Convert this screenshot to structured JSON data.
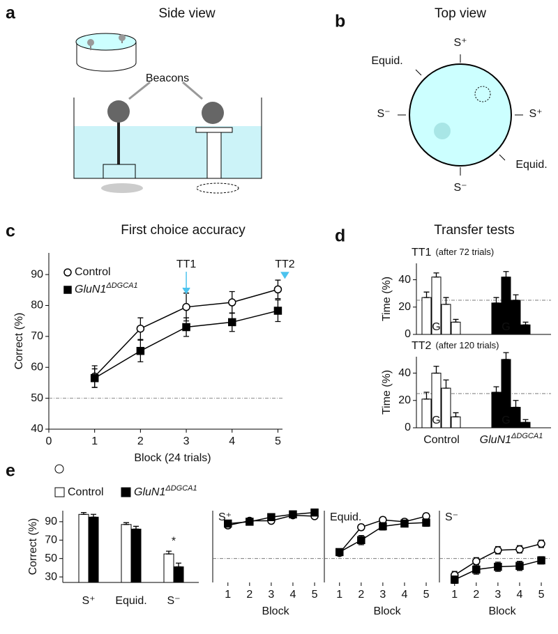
{
  "panel_a": {
    "label": "a",
    "title": "Side view",
    "beacons": "Beacons"
  },
  "panel_b": {
    "label": "b",
    "title": "Top view",
    "labels": [
      "S⁺",
      "Equid.",
      "S⁻",
      "S⁺",
      "Equid.",
      "S⁻"
    ]
  },
  "panel_d": {
    "label": "d",
    "title": "Transfer tests"
  },
  "chart_data": [
    {
      "type": "line",
      "panel_label": "c",
      "title": "First choice accuracy",
      "x_label": "Block (24 trials)",
      "y_label": "Correct (%)",
      "x": [
        1,
        2,
        3,
        4,
        5
      ],
      "xlim": [
        0,
        5.1
      ],
      "xticks": [
        0,
        1,
        2,
        3,
        4,
        5
      ],
      "ylim": [
        40,
        97
      ],
      "yticks": [
        40,
        50,
        60,
        70,
        80,
        90
      ],
      "reference_line": 50,
      "legend": true,
      "annotations": [
        "TT1",
        "TT2"
      ],
      "annotation_color": "#4cc3ee",
      "series": [
        {
          "name": "Control",
          "marker": "circle",
          "color": "#ffffff",
          "values": [
            57,
            72.5,
            79.5,
            81,
            85.2
          ],
          "errors": [
            3.5,
            3.5,
            4.5,
            3.5,
            3
          ]
        },
        {
          "name": "GluN1",
          "name_sup": "ΔDGCA1",
          "label_style": "italic",
          "marker": "square",
          "color": "#000000",
          "values": [
            56.5,
            65.3,
            73,
            74.6,
            78.3
          ],
          "errors": [
            3,
            3.5,
            3,
            3,
            3.5
          ]
        }
      ]
    },
    {
      "type": "bar",
      "label": "TT1",
      "note": "(after 72 trials)",
      "y_label": "Time (%)",
      "ylim": [
        0,
        52
      ],
      "yticks": [
        0,
        20,
        40
      ],
      "reference_line": 25,
      "series": [
        {
          "color": "#ffffff",
          "values": [
            27,
            42,
            22,
            9
          ],
          "errors": [
            4,
            3,
            5,
            2
          ],
          "bar_labels": [
            null,
            "G",
            null,
            null
          ]
        },
        {
          "color": "#000000",
          "values": [
            23,
            42,
            25,
            7
          ],
          "errors": [
            4,
            4,
            4,
            2
          ],
          "bar_labels": [
            null,
            "G",
            null,
            null
          ]
        }
      ]
    },
    {
      "type": "bar",
      "label": "TT2",
      "note": "(after 120 trials)",
      "y_label": "Time (%)",
      "ylim": [
        0,
        52
      ],
      "yticks": [
        0,
        20,
        40
      ],
      "reference_line": 25,
      "series": [
        {
          "name": "Control",
          "color": "#ffffff",
          "values": [
            21,
            40,
            29,
            8
          ],
          "errors": [
            5,
            5,
            6,
            3
          ],
          "bar_labels": [
            null,
            "G",
            null,
            null
          ]
        },
        {
          "name": "GluN1",
          "name_sup": "ΔDGCA1",
          "label_style": "italic",
          "color": "#000000",
          "values": [
            26,
            50,
            15,
            4
          ],
          "errors": [
            4,
            5,
            5,
            2
          ],
          "bar_labels": [
            null,
            "G",
            null,
            null
          ]
        }
      ]
    },
    {
      "type": "bar",
      "panel_label": "e",
      "y_label": "Correct (%)",
      "categories": [
        "S⁺",
        "Equid.",
        "S⁻"
      ],
      "ylim": [
        24,
        102
      ],
      "yticks": [
        30,
        50,
        70,
        90
      ],
      "legend": true,
      "annotations": [
        "*"
      ],
      "series": [
        {
          "name": "Control",
          "color": "#ffffff",
          "values": [
            98,
            87,
            55
          ],
          "errors": [
            2,
            2,
            3
          ]
        },
        {
          "name": "GluN1",
          "name_sup": "ΔDGCA1",
          "label_style": "italic",
          "color": "#000000",
          "values": [
            95,
            82,
            41
          ],
          "errors": [
            3,
            3,
            4
          ]
        }
      ]
    },
    {
      "type": "line",
      "title": "S⁺",
      "x_label": "Block",
      "x": [
        1,
        2,
        3,
        4,
        5
      ],
      "xlim": [
        0.3,
        5.45
      ],
      "xticks": [
        1,
        2,
        3,
        4,
        5
      ],
      "ylim": [
        24,
        102
      ],
      "reference_line": 50,
      "series": [
        {
          "marker": "circle",
          "color": "#ffffff",
          "values": [
            86,
            91,
            91,
            97,
            96
          ],
          "errors": [
            3,
            2,
            2,
            2,
            2
          ]
        },
        {
          "marker": "square",
          "color": "#000000",
          "values": [
            88,
            90,
            95,
            98,
            100
          ],
          "errors": [
            3,
            2,
            2,
            2,
            2
          ]
        }
      ]
    },
    {
      "type": "line",
      "title": "Equid.",
      "x_label": "Block",
      "x": [
        1,
        2,
        3,
        4,
        5
      ],
      "xlim": [
        0.3,
        5.45
      ],
      "xticks": [
        1,
        2,
        3,
        4,
        5
      ],
      "ylim": [
        24,
        102
      ],
      "reference_line": 50,
      "series": [
        {
          "marker": "circle",
          "color": "#ffffff",
          "values": [
            56,
            84,
            92,
            90,
            96
          ],
          "errors": [
            3,
            3,
            3,
            3,
            3
          ]
        },
        {
          "marker": "square",
          "color": "#000000",
          "values": [
            57,
            70,
            85,
            88,
            89
          ],
          "errors": [
            3,
            5,
            4,
            3,
            4
          ]
        }
      ]
    },
    {
      "type": "line",
      "title": "S⁻",
      "x_label": "Block",
      "x": [
        1,
        2,
        3,
        4,
        5
      ],
      "xlim": [
        0.3,
        5.45
      ],
      "xticks": [
        1,
        2,
        3,
        4,
        5
      ],
      "ylim": [
        24,
        102
      ],
      "reference_line": 50,
      "series": [
        {
          "marker": "circle",
          "color": "#ffffff",
          "values": [
            32,
            47,
            59,
            60,
            66
          ],
          "errors": [
            4,
            4,
            4,
            4,
            4
          ]
        },
        {
          "marker": "square",
          "color": "#000000",
          "values": [
            27,
            38,
            41,
            42,
            48
          ],
          "errors": [
            4,
            5,
            5,
            5,
            4
          ]
        }
      ]
    }
  ]
}
